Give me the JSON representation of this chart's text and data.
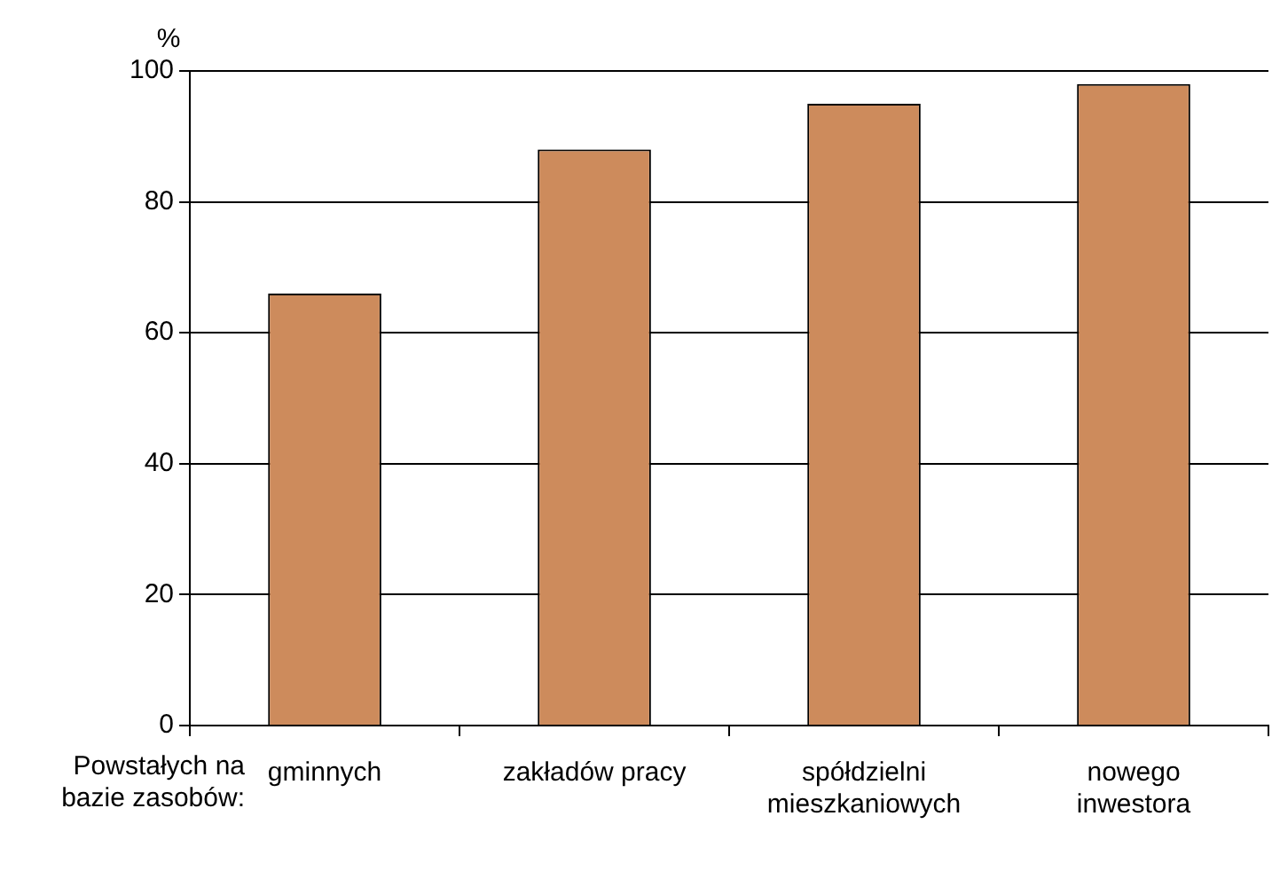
{
  "chart_data": {
    "type": "bar",
    "ylabel": "%",
    "xlabel": "Powstałych na\nbazie zasobów:",
    "categories": [
      "gminnych",
      "zakładów pracy",
      "spółdzielni\nmieszkaniowych",
      "nowego\ninwestora"
    ],
    "values": [
      66,
      88,
      95,
      98
    ],
    "color": "#cd8b5c",
    "ylim": [
      0,
      100
    ],
    "yticks": [
      0,
      20,
      40,
      60,
      80,
      100
    ],
    "grid": "y"
  }
}
